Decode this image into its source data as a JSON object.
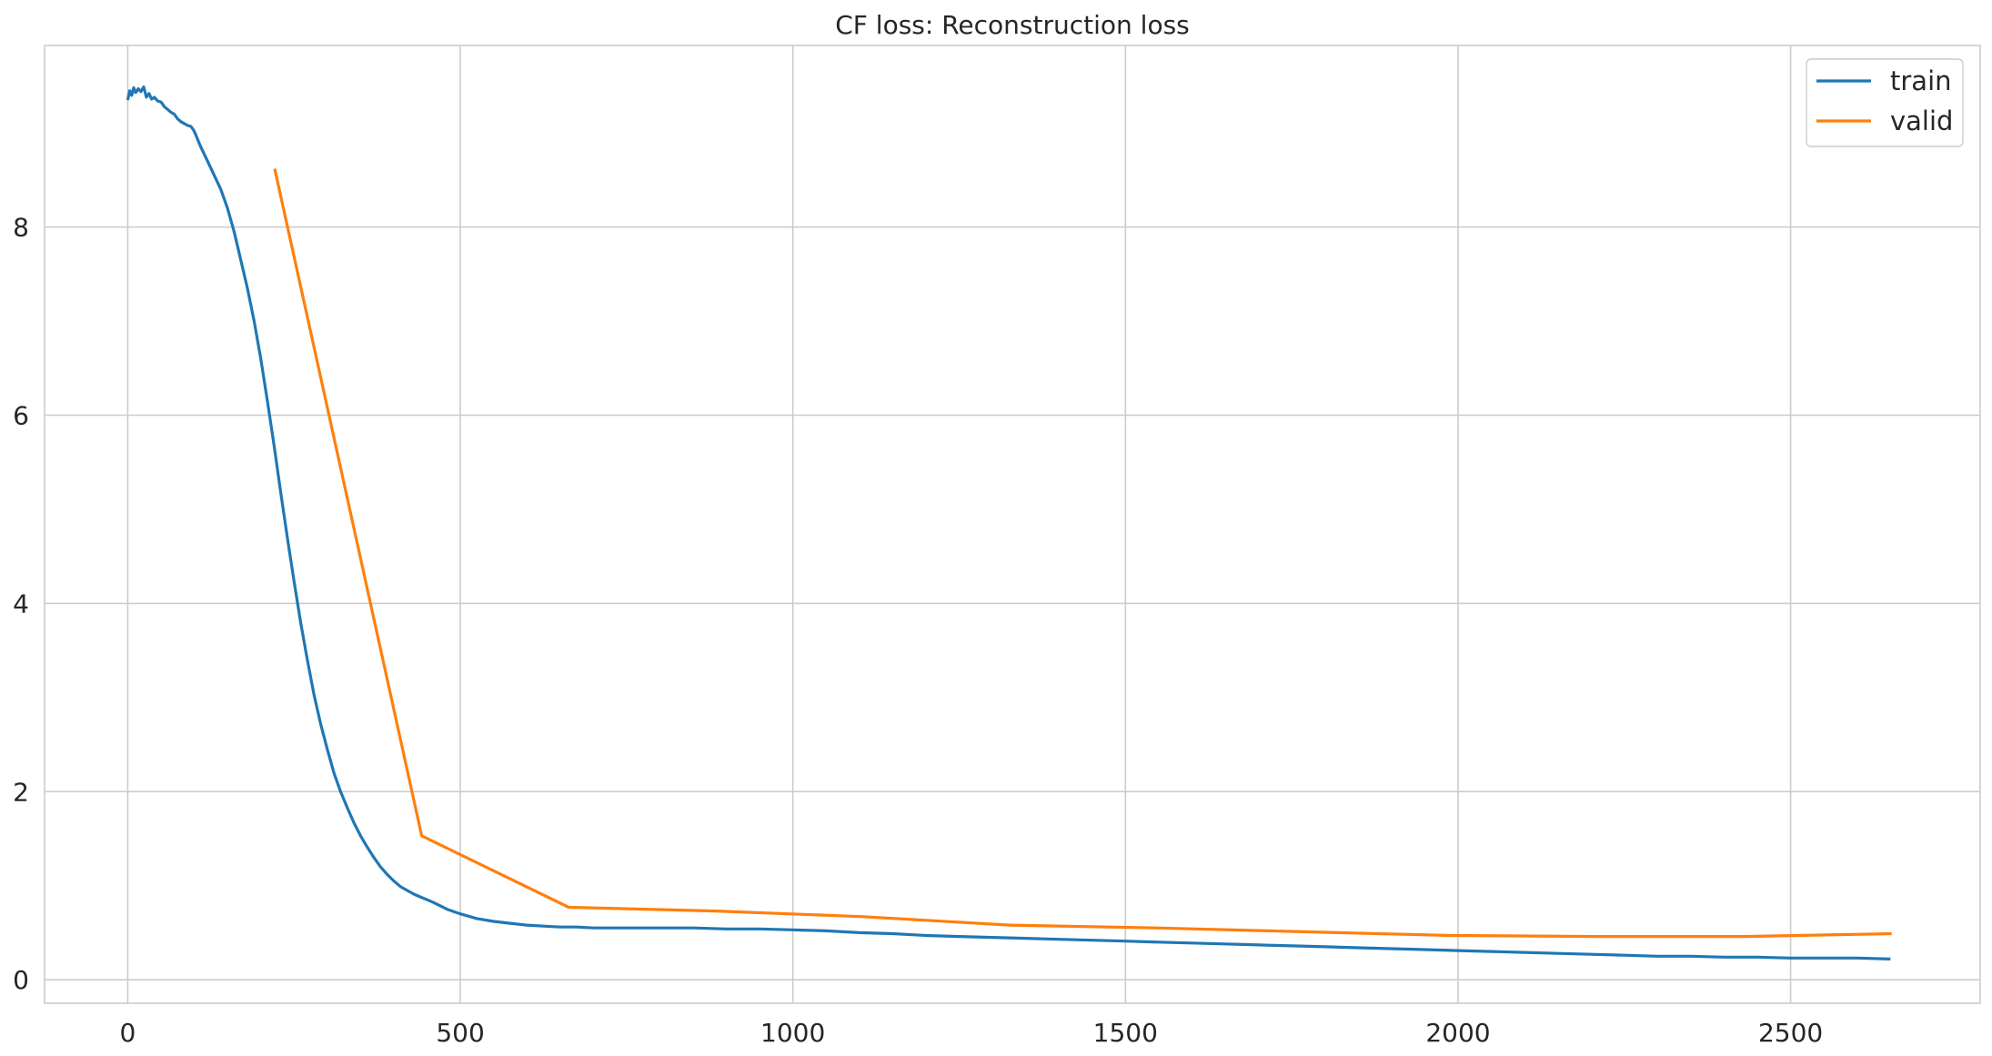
{
  "chart_data": {
    "type": "line",
    "title": "CF loss: Reconstruction loss",
    "xlabel": "",
    "ylabel": "",
    "xlim": [
      -125,
      2785
    ],
    "ylim": [
      -0.25,
      9.93
    ],
    "xticks": [
      0,
      500,
      1000,
      1500,
      2000,
      2500
    ],
    "yticks": [
      0,
      2,
      4,
      6,
      8
    ],
    "grid": true,
    "legend_position": "top-right",
    "series": [
      {
        "name": "train",
        "color": "#1f77b4",
        "x": [
          0,
          3,
          6,
          9,
          12,
          16,
          20,
          24,
          28,
          32,
          36,
          40,
          45,
          50,
          55,
          60,
          65,
          70,
          75,
          80,
          85,
          90,
          95,
          100,
          110,
          120,
          130,
          140,
          150,
          160,
          170,
          180,
          190,
          200,
          210,
          220,
          230,
          240,
          250,
          260,
          270,
          280,
          290,
          300,
          310,
          320,
          330,
          340,
          350,
          360,
          370,
          380,
          390,
          400,
          410,
          420,
          430,
          440,
          450,
          460,
          480,
          500,
          525,
          550,
          575,
          600,
          625,
          650,
          675,
          700,
          750,
          800,
          850,
          900,
          950,
          1000,
          1050,
          1100,
          1150,
          1200,
          1250,
          1300,
          1350,
          1400,
          1450,
          1500,
          1550,
          1600,
          1650,
          1700,
          1750,
          1800,
          1850,
          1900,
          1950,
          2000,
          2050,
          2100,
          2150,
          2200,
          2250,
          2300,
          2350,
          2400,
          2450,
          2500,
          2550,
          2600,
          2650
        ],
        "values": [
          9.35,
          9.45,
          9.4,
          9.48,
          9.43,
          9.47,
          9.44,
          9.49,
          9.38,
          9.42,
          9.36,
          9.38,
          9.34,
          9.33,
          9.28,
          9.25,
          9.22,
          9.2,
          9.15,
          9.12,
          9.1,
          9.08,
          9.07,
          9.02,
          8.85,
          8.7,
          8.55,
          8.4,
          8.2,
          7.95,
          7.65,
          7.35,
          7.0,
          6.6,
          6.15,
          5.68,
          5.18,
          4.7,
          4.24,
          3.8,
          3.4,
          3.03,
          2.72,
          2.45,
          2.2,
          2.0,
          1.83,
          1.67,
          1.53,
          1.41,
          1.3,
          1.2,
          1.12,
          1.05,
          0.99,
          0.95,
          0.91,
          0.88,
          0.85,
          0.82,
          0.75,
          0.7,
          0.65,
          0.62,
          0.6,
          0.58,
          0.57,
          0.56,
          0.56,
          0.55,
          0.55,
          0.55,
          0.55,
          0.54,
          0.54,
          0.53,
          0.52,
          0.5,
          0.49,
          0.47,
          0.46,
          0.45,
          0.44,
          0.43,
          0.42,
          0.41,
          0.4,
          0.39,
          0.38,
          0.37,
          0.36,
          0.35,
          0.34,
          0.33,
          0.32,
          0.31,
          0.3,
          0.29,
          0.28,
          0.27,
          0.26,
          0.25,
          0.25,
          0.24,
          0.24,
          0.23,
          0.23,
          0.23,
          0.22
        ]
      },
      {
        "name": "valid",
        "color": "#ff7f0e",
        "x": [
          221,
          442,
          663,
          884,
          1105,
          1326,
          1547,
          1768,
          1989,
          2210,
          2431,
          2652
        ],
        "values": [
          8.62,
          1.53,
          0.77,
          0.73,
          0.67,
          0.58,
          0.55,
          0.51,
          0.47,
          0.46,
          0.46,
          0.49
        ]
      }
    ]
  }
}
